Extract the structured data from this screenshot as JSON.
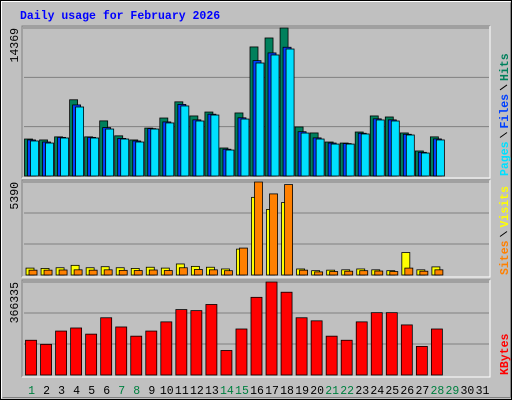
{
  "chart_data": [
    {
      "type": "bar",
      "title": "Daily usage for February 2026",
      "ylim": [
        0,
        14369
      ],
      "yticks": [
        14369
      ],
      "series": [
        {
          "name": "Hits",
          "color": "#00805c",
          "values": [
            3590,
            3500,
            3800,
            7400,
            3800,
            5350,
            3900,
            3500,
            4650,
            5630,
            7200,
            5830,
            6210,
            2720,
            6120,
            12530,
            13400,
            14369,
            4760,
            4180,
            3300,
            3200,
            4270,
            5830,
            5730,
            4180,
            2430,
            3800,
            null,
            null,
            null
          ]
        },
        {
          "name": "Files",
          "color": "#0040ff",
          "values": [
            3500,
            3300,
            3750,
            6900,
            3750,
            4700,
            3650,
            3400,
            4600,
            5250,
            6950,
            5450,
            6000,
            2600,
            5650,
            11200,
            11950,
            12500,
            4300,
            3700,
            3200,
            3150,
            4150,
            5550,
            5450,
            4050,
            2300,
            3600,
            null,
            null,
            null
          ]
        },
        {
          "name": "Pages",
          "color": "#00e0ff",
          "values": [
            3400,
            3200,
            3690,
            6700,
            3690,
            4560,
            3590,
            3300,
            4560,
            5150,
            6800,
            5340,
            5920,
            2520,
            5530,
            10970,
            11750,
            12330,
            4170,
            3590,
            3100,
            3100,
            4080,
            5440,
            5340,
            3980,
            2230,
            3500,
            null,
            null,
            null
          ]
        }
      ]
    },
    {
      "type": "bar",
      "ylim": [
        0,
        5390
      ],
      "yticks": [
        5390
      ],
      "series": [
        {
          "name": "Visits",
          "color": "#ffff00",
          "values": [
            400,
            380,
            420,
            560,
            420,
            480,
            420,
            380,
            450,
            400,
            640,
            500,
            450,
            350,
            1500,
            4500,
            3800,
            4200,
            350,
            250,
            280,
            300,
            350,
            300,
            250,
            1300,
            300,
            470,
            null,
            null,
            null
          ]
        },
        {
          "name": "Sites",
          "color": "#ff8000",
          "values": [
            280,
            280,
            290,
            300,
            280,
            300,
            270,
            260,
            290,
            260,
            420,
            320,
            300,
            250,
            1560,
            5390,
            4700,
            5240,
            280,
            180,
            200,
            220,
            250,
            230,
            200,
            400,
            220,
            300,
            null,
            null,
            null
          ]
        }
      ]
    },
    {
      "type": "bar",
      "ylim": [
        0,
        366335
      ],
      "yticks": [
        366335
      ],
      "series": [
        {
          "name": "KBytes",
          "color": "#ff0000",
          "values": [
            136900,
            120800,
            173100,
            185200,
            161000,
            225500,
            189200,
            153000,
            173100,
            209300,
            257700,
            253600,
            277800,
            96600,
            181200,
            306000,
            366335,
            326100,
            225500,
            213400,
            153000,
            136900,
            209300,
            245600,
            245600,
            197300,
            112700,
            181200,
            null,
            null,
            null
          ]
        }
      ],
      "categories": [
        "1",
        "2",
        "3",
        "4",
        "5",
        "6",
        "7",
        "8",
        "9",
        "10",
        "11",
        "12",
        "13",
        "14",
        "15",
        "16",
        "17",
        "18",
        "19",
        "20",
        "21",
        "22",
        "23",
        "24",
        "25",
        "26",
        "27",
        "28",
        "29",
        "30",
        "31"
      ],
      "category_colors": [
        "#008040",
        "#000000",
        "#000000",
        "#000000",
        "#000000",
        "#000000",
        "#008040",
        "#008040",
        "#000000",
        "#000000",
        "#000000",
        "#000000",
        "#000000",
        "#008040",
        "#008040",
        "#000000",
        "#000000",
        "#000000",
        "#000000",
        "#000000",
        "#008040",
        "#008040",
        "#000000",
        "#000000",
        "#000000",
        "#000000",
        "#000000",
        "#008040",
        "#008040",
        "#000000",
        "#000000"
      ]
    }
  ]
}
